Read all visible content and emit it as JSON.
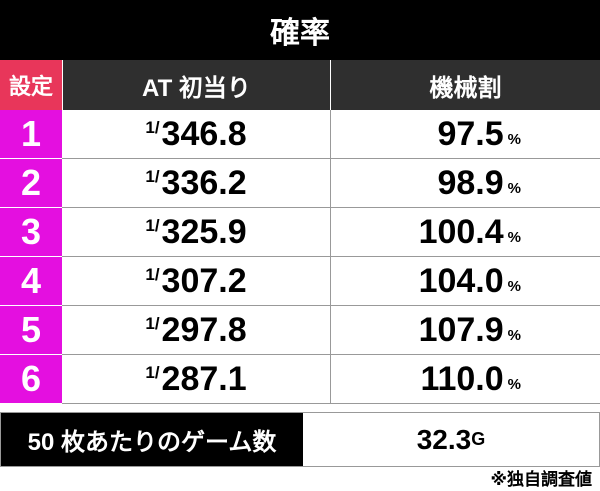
{
  "title": "確率",
  "headers": {
    "setting": "設定",
    "at": "AT 初当り",
    "payout": "機械割"
  },
  "rows": [
    {
      "setting": "1",
      "at_num": "1/",
      "at": "346.8",
      "payout": "97.5",
      "unit": "%"
    },
    {
      "setting": "2",
      "at_num": "1/",
      "at": "336.2",
      "payout": "98.9",
      "unit": "%"
    },
    {
      "setting": "3",
      "at_num": "1/",
      "at": "325.9",
      "payout": "100.4",
      "unit": "%"
    },
    {
      "setting": "4",
      "at_num": "1/",
      "at": "307.2",
      "payout": "104.0",
      "unit": "%"
    },
    {
      "setting": "5",
      "at_num": "1/",
      "at": "297.8",
      "payout": "107.9",
      "unit": "%"
    },
    {
      "setting": "6",
      "at_num": "1/",
      "at": "287.1",
      "payout": "110.0",
      "unit": "%"
    }
  ],
  "games": {
    "label": "50 枚あたりのゲーム数",
    "value": "32.3",
    "unit": "G"
  },
  "note": "※独自調査値",
  "colors": {
    "setting_bg": "#e40fe0",
    "setting_header": "#e8365a",
    "header_bg": "#2f2f2f"
  }
}
